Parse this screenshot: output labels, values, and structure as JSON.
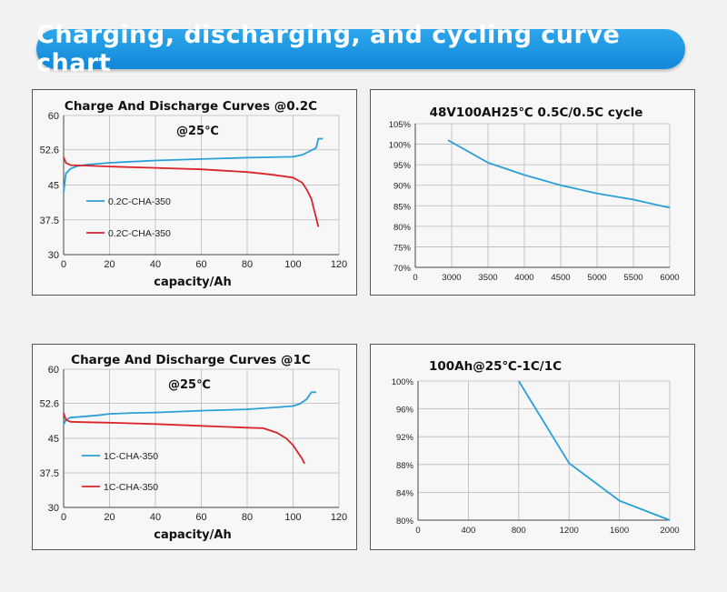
{
  "banner": {
    "title": "Charging, discharging, and cycling curve chart"
  },
  "colors": {
    "banner": "#1a93e0",
    "charge": "#2a9fd8",
    "discharge": "#d9252a",
    "cycle": "#2a9fd8"
  },
  "chart_data": [
    {
      "id": "a",
      "type": "line",
      "title": "Charge And Discharge Curves @0.2C",
      "annotation": "@25℃",
      "xlabel": "capacity/Ah",
      "ylabel": "",
      "xlim": [
        0,
        120
      ],
      "ylim": [
        30,
        60
      ],
      "x_ticks": [
        "0",
        "20",
        "40",
        "60",
        "80",
        "100",
        "120"
      ],
      "y_ticks": [
        "30",
        "37.5",
        "45",
        "52.6",
        "60"
      ],
      "grid": true,
      "series": [
        {
          "name": "0.2C-CHA-350",
          "color": "#2a9fd8",
          "x": [
            0,
            1,
            3,
            6,
            10,
            20,
            40,
            60,
            80,
            90,
            100,
            104,
            108,
            110,
            111,
            113
          ],
          "y": [
            43.5,
            47.5,
            48.5,
            49.1,
            49.4,
            49.8,
            50.3,
            50.6,
            50.9,
            51.0,
            51.1,
            51.5,
            52.5,
            53.0,
            55.0,
            55.0
          ]
        },
        {
          "name": "0.2C-CHA-350",
          "color": "#d9252a",
          "x": [
            0,
            1,
            3,
            10,
            20,
            40,
            60,
            80,
            90,
            100,
            104,
            106,
            108,
            109,
            110,
            111
          ],
          "y": [
            51.0,
            49.8,
            49.3,
            49.2,
            49.0,
            48.7,
            48.4,
            47.8,
            47.3,
            46.6,
            45.5,
            44.0,
            42.0,
            40.0,
            38.0,
            36.0
          ]
        }
      ]
    },
    {
      "id": "b",
      "type": "line",
      "title": "48V100AH25℃  0.5C/0.5C cycle",
      "xlabel": "",
      "ylabel": "",
      "xlim": [
        2500,
        6000
      ],
      "ylim": [
        70,
        105
      ],
      "x_ticks": [
        "0",
        "3000",
        "3500",
        "4000",
        "4500",
        "5000",
        "5500",
        "6000"
      ],
      "y_ticks": [
        "70%",
        "75%",
        "80%",
        "85%",
        "90%",
        "95%",
        "100%",
        "105%"
      ],
      "grid": true,
      "series": [
        {
          "name": "",
          "color": "#2a9fd8",
          "x": [
            2950,
            3500,
            4000,
            4500,
            5000,
            5500,
            6000
          ],
          "y": [
            101,
            95.5,
            92.5,
            90,
            88,
            86.5,
            84.5
          ]
        }
      ]
    },
    {
      "id": "c",
      "type": "line",
      "title": "Charge And Discharge Curves @1C",
      "annotation": "@25℃",
      "xlabel": "capacity/Ah",
      "ylabel": "",
      "xlim": [
        0,
        120
      ],
      "ylim": [
        30,
        60
      ],
      "x_ticks": [
        "0",
        "20",
        "40",
        "60",
        "80",
        "100",
        "120"
      ],
      "y_ticks": [
        "30",
        "37.5",
        "45",
        "52.6",
        "60"
      ],
      "grid": true,
      "series": [
        {
          "name": "1C-CHA-350",
          "color": "#2a9fd8",
          "x": [
            0,
            1,
            3,
            8,
            15,
            20,
            30,
            40,
            60,
            80,
            95,
            100,
            103,
            106,
            108,
            110
          ],
          "y": [
            48.0,
            49.0,
            49.5,
            49.7,
            50.0,
            50.3,
            50.5,
            50.6,
            51.0,
            51.3,
            51.8,
            52.0,
            52.5,
            53.5,
            55.0,
            55.0
          ]
        },
        {
          "name": "1C-CHA-350",
          "color": "#d9252a",
          "x": [
            0,
            1,
            3,
            10,
            20,
            40,
            60,
            80,
            87,
            93,
            97,
            100,
            102,
            104,
            105
          ],
          "y": [
            50.5,
            49.0,
            48.6,
            48.5,
            48.4,
            48.1,
            47.7,
            47.3,
            47.2,
            46.2,
            45.0,
            43.5,
            42.0,
            40.5,
            39.5
          ]
        }
      ]
    },
    {
      "id": "d",
      "type": "line",
      "title": "100Ah@25℃-1C/1C",
      "xlabel": "",
      "ylabel": "",
      "xlim": [
        0,
        2000
      ],
      "ylim": [
        80,
        100
      ],
      "x_ticks": [
        "0",
        "400",
        "800",
        "1200",
        "1600",
        "2000"
      ],
      "y_ticks": [
        "80%",
        "84%",
        "88%",
        "92%",
        "96%",
        "100%"
      ],
      "grid": true,
      "series": [
        {
          "name": "",
          "color": "#2a9fd8",
          "x": [
            800,
            1200,
            1600,
            2000
          ],
          "y": [
            100,
            88.2,
            82.8,
            80
          ]
        }
      ]
    }
  ]
}
